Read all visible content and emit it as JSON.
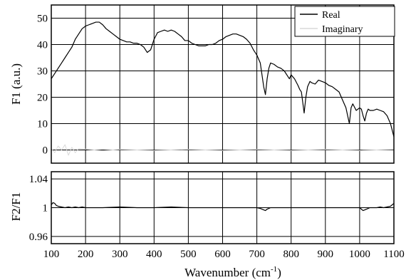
{
  "chart_data": [
    {
      "type": "line",
      "ylabel": "F1 (a.u.)",
      "xlim": [
        100,
        1100
      ],
      "ylim": [
        -5,
        55
      ],
      "x_ticks": [
        100,
        200,
        300,
        400,
        500,
        600,
        700,
        800,
        900,
        1000,
        1100
      ],
      "y_ticks": [
        0,
        10,
        20,
        30,
        40,
        50
      ],
      "grid": true,
      "legend_position": "top-right",
      "series": [
        {
          "name": "Real",
          "color": "#000000",
          "x": [
            100,
            110,
            120,
            130,
            140,
            150,
            160,
            170,
            180,
            190,
            200,
            210,
            220,
            230,
            240,
            250,
            260,
            270,
            280,
            290,
            300,
            310,
            320,
            330,
            340,
            350,
            360,
            370,
            380,
            390,
            400,
            410,
            420,
            430,
            440,
            450,
            460,
            470,
            480,
            490,
            500,
            510,
            520,
            530,
            540,
            550,
            560,
            570,
            580,
            590,
            600,
            610,
            620,
            630,
            640,
            650,
            660,
            670,
            680,
            690,
            700,
            710,
            720,
            725,
            730,
            735,
            740,
            750,
            760,
            770,
            780,
            790,
            795,
            800,
            810,
            820,
            825,
            830,
            838,
            843,
            848,
            855,
            860,
            870,
            880,
            890,
            900,
            910,
            920,
            930,
            940,
            950,
            960,
            965,
            970,
            975,
            980,
            990,
            1000,
            1005,
            1010,
            1015,
            1020,
            1025,
            1030,
            1040,
            1050,
            1060,
            1070,
            1080,
            1090,
            1100
          ],
          "values": [
            27,
            29,
            31,
            33,
            35,
            37,
            39,
            42,
            44,
            46,
            47,
            47.5,
            48,
            48.5,
            48.5,
            47.5,
            46,
            45,
            44,
            43,
            42,
            41.5,
            41,
            41,
            40.5,
            40.5,
            40,
            39,
            37,
            38,
            42,
            44.5,
            45,
            45.5,
            45,
            45.5,
            45,
            44,
            43,
            41.5,
            41.5,
            40.5,
            40,
            39.5,
            39.5,
            39.5,
            40,
            40,
            40.5,
            41.5,
            42,
            43,
            43.5,
            44,
            44,
            43.5,
            43,
            42,
            40.5,
            38,
            36,
            33,
            24,
            21,
            27,
            31,
            33,
            32.5,
            31.5,
            31,
            30,
            28,
            27,
            28.5,
            27,
            24.5,
            23,
            22,
            14,
            20,
            24,
            26,
            25.5,
            25,
            26.5,
            26,
            25.5,
            24.5,
            24,
            23,
            22,
            19,
            16,
            13,
            10,
            16,
            17.5,
            15,
            16,
            15.5,
            13,
            11,
            14,
            15.5,
            15,
            15,
            15.5,
            15,
            14.5,
            13,
            10,
            5
          ]
        },
        {
          "name": "Imaginary",
          "color": "#d8d8d8",
          "x": [
            100,
            110,
            120,
            130,
            140,
            150,
            160,
            170,
            180,
            200,
            250,
            300,
            400,
            500,
            600,
            700,
            800,
            900,
            1000,
            1100
          ],
          "values": [
            0.5,
            -1,
            1.5,
            0,
            2,
            -2,
            1,
            -1,
            0.5,
            0.3,
            -0.3,
            0.2,
            -0.2,
            0.2,
            -0.2,
            0.2,
            -0.2,
            0.2,
            -0.2,
            0.2
          ]
        }
      ]
    },
    {
      "type": "line",
      "ylabel": "F2/F1",
      "xlabel": "Wavenumber (cm-1)",
      "xlabel_main": "Wavenumber (cm",
      "xlabel_sup": "-1",
      "xlabel_close": ")",
      "xlim": [
        100,
        1100
      ],
      "ylim": [
        0.95,
        1.05
      ],
      "x_ticks": [
        100,
        200,
        300,
        400,
        500,
        600,
        700,
        800,
        900,
        1000,
        1100
      ],
      "y_ticks": [
        0.96,
        1,
        1.04
      ],
      "y_tick_labels": [
        "0.96",
        "1",
        "1.04"
      ],
      "grid": true,
      "series": [
        {
          "name": "",
          "color": "#000000",
          "x": [
            100,
            105,
            110,
            115,
            120,
            130,
            140,
            150,
            160,
            170,
            180,
            190,
            200,
            250,
            300,
            350,
            400,
            450,
            500,
            550,
            600,
            650,
            700,
            710,
            720,
            725,
            730,
            740,
            750,
            800,
            850,
            900,
            950,
            1000,
            1005,
            1010,
            1015,
            1020,
            1030,
            1040,
            1050,
            1060,
            1070,
            1080,
            1090,
            1100
          ],
          "values": [
            1.004,
            1.007,
            1.006,
            1.003,
            1.002,
            1.001,
            1.0,
            1.001,
            1.0,
            1.001,
            1.0,
            1.001,
            1.0,
            1.0,
            1.001,
            1.0,
            1.0,
            1.001,
            1.0,
            1.0,
            1.0,
            1.0,
            1.0,
            0.999,
            0.997,
            0.996,
            0.998,
            1.0,
            1.0,
            1.0,
            1.0,
            1.0,
            1.0,
            1.0,
            0.998,
            0.996,
            0.997,
            0.998,
            1.0,
            1.0,
            1.0,
            1.001,
            1.0,
            1.001,
            1.002,
            1.006
          ]
        }
      ]
    }
  ]
}
